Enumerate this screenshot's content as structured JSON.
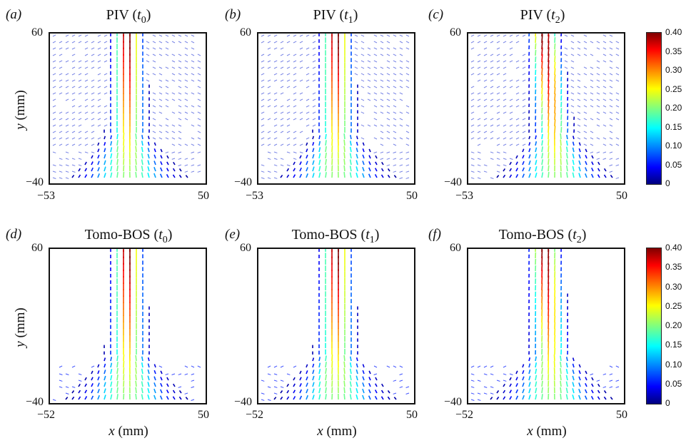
{
  "panels": [
    {
      "id": "a",
      "label": "(a)",
      "method": "PIV",
      "time_var": "t",
      "time_sub": "0",
      "x_min": "−53",
      "x_max": "50",
      "y_max": "60",
      "y_min": "−40",
      "show_ylabel": true,
      "show_xlabel": false,
      "tilt": 0
    },
    {
      "id": "b",
      "label": "(b)",
      "method": "PIV",
      "time_var": "t",
      "time_sub": "1",
      "x_min": "−53",
      "x_max": "50",
      "y_max": "60",
      "y_min": "−40",
      "show_ylabel": false,
      "show_xlabel": false,
      "tilt": 0
    },
    {
      "id": "c",
      "label": "(c)",
      "method": "PIV",
      "time_var": "t",
      "time_sub": "2",
      "x_min": "−53",
      "x_max": "50",
      "y_max": "60",
      "y_min": "−40",
      "show_ylabel": false,
      "show_xlabel": false,
      "tilt": 0.35
    },
    {
      "id": "d",
      "label": "(d)",
      "method": "Tomo-BOS",
      "time_var": "t",
      "time_sub": "0",
      "x_min": "−52",
      "x_max": "50",
      "y_max": "60",
      "y_min": "−40",
      "show_ylabel": true,
      "show_xlabel": true,
      "tilt": 0
    },
    {
      "id": "e",
      "label": "(e)",
      "method": "Tomo-BOS",
      "time_var": "t",
      "time_sub": "1",
      "x_min": "−52",
      "x_max": "50",
      "y_max": "60",
      "y_min": "−40",
      "show_ylabel": false,
      "show_xlabel": true,
      "tilt": 0
    },
    {
      "id": "f",
      "label": "(f)",
      "method": "Tomo-BOS",
      "time_var": "t",
      "time_sub": "2",
      "x_min": "−52",
      "x_max": "50",
      "y_max": "60",
      "y_min": "−40",
      "show_ylabel": false,
      "show_xlabel": true,
      "tilt": 0.2
    }
  ],
  "axis_labels": {
    "y_var": "y",
    "y_unit": "(mm)",
    "x_var": "x",
    "x_unit": "(mm)"
  },
  "colorbar": {
    "ticks": [
      "0.40",
      "0.35",
      "0.30",
      "0.25",
      "0.20",
      "0.15",
      "0.10",
      "0.05",
      "0"
    ],
    "min": 0,
    "max": 0.4,
    "colors": [
      "#00007f",
      "#0000ff",
      "#0080ff",
      "#00ffff",
      "#7fff7f",
      "#ffff00",
      "#ff8000",
      "#ff0000",
      "#7f0000"
    ]
  }
}
